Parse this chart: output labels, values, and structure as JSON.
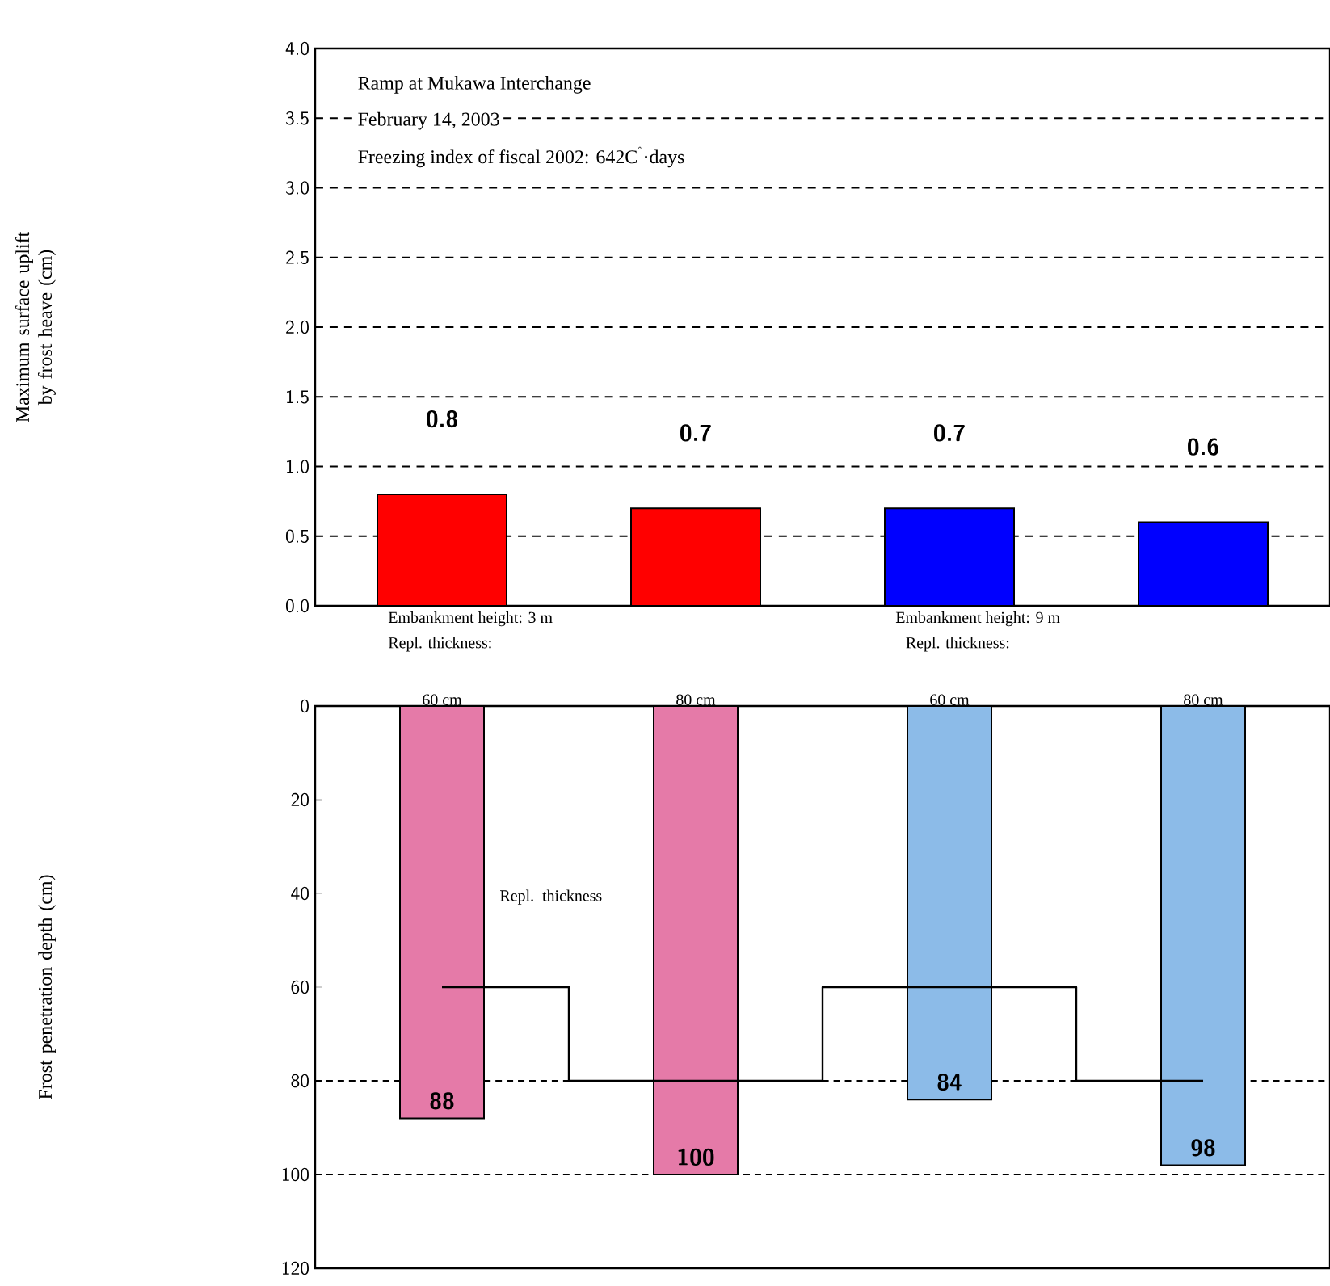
{
  "chart_data": [
    {
      "type": "bar",
      "ylabel": "Maximum surface uplift by frost heave (cm)",
      "categories": [
        null,
        null,
        null,
        null
      ],
      "values": [
        0.8,
        0.7,
        0.7,
        0.6
      ],
      "colors": [
        "#ff0000",
        "#ff0000",
        "#0000ff",
        "#0000ff"
      ],
      "ylim": [
        0,
        4
      ],
      "yticks": [
        {
          "value": 0,
          "label": "0.0"
        },
        {
          "value": 0.5,
          "label": "0.5"
        },
        {
          "value": 1,
          "label": "1.0"
        },
        {
          "value": 1.5,
          "label": "1.5"
        },
        {
          "value": 2,
          "label": "2.0"
        },
        {
          "value": 2.5,
          "label": "2.5"
        },
        {
          "value": 3,
          "label": "3.0"
        },
        {
          "value": 3.5,
          "label": "3.5"
        },
        {
          "value": 4,
          "label": "4.0"
        }
      ],
      "grid": "y",
      "data_labels": true,
      "annotations": [
        "Ramp at Mukawa Interchange",
        "February 14, 2003",
        "Freezing index of fiscal 2002: 642C$^{˚}$·days"
      ]
    },
    {
      "type": "bar",
      "ylabel": "Frost penetration depth (cm)",
      "categories": [
        "60 cm",
        "80 cm",
        "60 cm",
        "80 cm"
      ],
      "series": [
        {
          "type": "bar",
          "colors": [
            "#e57aa8",
            "#e57aa8",
            "#8cbbe8",
            "#8cbbe8"
          ],
          "values": [
            88,
            100,
            84,
            98
          ],
          "value_labels": [
            "88",
            "100",
            "84",
            "98"
          ]
        },
        {
          "type": "step",
          "color": "#000000",
          "values": [
            60,
            80,
            60,
            80
          ]
        }
      ],
      "ylim": [
        120,
        0
      ],
      "yticks": [
        0,
        20,
        40,
        60,
        80,
        100,
        120
      ],
      "ref_lines": [
        {
          "axis": "y",
          "value": 80,
          "line_style": "dashed"
        },
        {
          "axis": "y",
          "value": 100,
          "line_style": "dashed"
        }
      ],
      "annotations": [
        "Embankment height: 3 m",
        "Repl. thickness:",
        "Embankment height: 9 m",
        "Repl. thickness:",
        "Repl. thickness"
      ]
    }
  ]
}
